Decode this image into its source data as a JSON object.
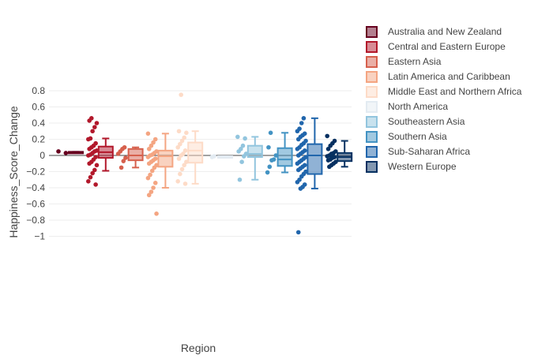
{
  "chart_data": {
    "type": "box",
    "title": "",
    "xlabel": "Region",
    "ylabel": "Happiness_Score_Change",
    "ylim": [
      -1.05,
      0.85
    ],
    "yticks": [
      0.8,
      0.6,
      0.4,
      0.2,
      0,
      -0.2,
      -0.4,
      -0.6,
      -0.8,
      -1
    ],
    "ytick_labels": [
      "0.8",
      "0.6",
      "0.4",
      "0.2",
      "0",
      "−0.2",
      "−0.4",
      "−0.6",
      "−0.8",
      "−1"
    ],
    "grid": true,
    "legend_position": "top-right",
    "series": [
      {
        "name": "Australia and New Zealand",
        "color": "#67001f",
        "box": {
          "lowerfence": 0.035,
          "q1": 0.035,
          "median": 0.04,
          "q3": 0.045,
          "upperfence": 0.045
        },
        "points": [
          0.05,
          0.03
        ]
      },
      {
        "name": "Central and Eastern Europe",
        "color": "#b2182b",
        "box": {
          "lowerfence": -0.19,
          "q1": -0.03,
          "median": 0.04,
          "q3": 0.11,
          "upperfence": 0.21
        },
        "points": [
          0.46,
          0.43,
          0.4,
          0.35,
          0.3,
          0.21,
          0.2,
          0.15,
          0.12,
          0.1,
          0.08,
          0.06,
          0.05,
          0.03,
          0.01,
          0.0,
          -0.02,
          -0.05,
          -0.08,
          -0.1,
          -0.12,
          -0.18,
          -0.22,
          -0.27,
          -0.32,
          -0.36
        ]
      },
      {
        "name": "Eastern Asia",
        "color": "#d6604d",
        "box": {
          "lowerfence": -0.15,
          "q1": -0.06,
          "median": 0.0,
          "q3": 0.08,
          "upperfence": 0.1
        },
        "points": [
          0.1,
          0.08,
          0.05,
          0.02,
          -0.03,
          -0.07,
          -0.15
        ]
      },
      {
        "name": "Latin America and Caribbean",
        "color": "#f4a582",
        "box": {
          "lowerfence": -0.4,
          "q1": -0.14,
          "median": -0.01,
          "q3": 0.06,
          "upperfence": 0.27
        },
        "points": [
          0.27,
          0.2,
          0.16,
          0.12,
          0.08,
          0.05,
          0.03,
          0.01,
          0.0,
          -0.02,
          -0.04,
          -0.06,
          -0.08,
          -0.1,
          -0.12,
          -0.15,
          -0.19,
          -0.24,
          -0.28,
          -0.34,
          -0.4,
          -0.45,
          -0.49,
          -0.72
        ]
      },
      {
        "name": "Middle East and Northern Africa",
        "color": "#fddbc7",
        "box": {
          "lowerfence": -0.35,
          "q1": -0.09,
          "median": 0.06,
          "q3": 0.16,
          "upperfence": 0.3
        },
        "points": [
          0.75,
          0.3,
          0.28,
          0.22,
          0.18,
          0.14,
          0.1,
          0.06,
          0.02,
          0.0,
          -0.04,
          -0.08,
          -0.12,
          -0.17,
          -0.23,
          -0.32,
          -0.35
        ]
      },
      {
        "name": "North America",
        "color": "#e3ebf2",
        "box": {
          "lowerfence": -0.02,
          "q1": -0.02,
          "median": -0.015,
          "q3": -0.01,
          "upperfence": -0.01
        },
        "points": [
          -0.01,
          -0.02
        ]
      },
      {
        "name": "Southeastern Asia",
        "color": "#92c5de",
        "box": {
          "lowerfence": -0.3,
          "q1": -0.02,
          "median": 0.02,
          "q3": 0.12,
          "upperfence": 0.23
        },
        "points": [
          0.23,
          0.21,
          0.12,
          0.08,
          0.05,
          0.02,
          -0.01,
          -0.08,
          -0.3
        ]
      },
      {
        "name": "Southern Asia",
        "color": "#4393c3",
        "box": {
          "lowerfence": -0.21,
          "q1": -0.13,
          "median": -0.05,
          "q3": 0.09,
          "upperfence": 0.28
        },
        "points": [
          0.28,
          0.1,
          0.0,
          -0.05,
          -0.06,
          -0.14,
          -0.21
        ]
      },
      {
        "name": "Sub-Saharan Africa",
        "color": "#2166ac",
        "box": {
          "lowerfence": -0.41,
          "q1": -0.23,
          "median": 0.0,
          "q3": 0.14,
          "upperfence": 0.46
        },
        "points": [
          0.46,
          0.4,
          0.33,
          0.3,
          0.27,
          0.25,
          0.23,
          0.2,
          0.18,
          0.15,
          0.13,
          0.1,
          0.08,
          0.06,
          0.04,
          0.02,
          0.0,
          -0.02,
          -0.04,
          -0.06,
          -0.08,
          -0.1,
          -0.12,
          -0.14,
          -0.16,
          -0.18,
          -0.2,
          -0.23,
          -0.26,
          -0.3,
          -0.33,
          -0.36,
          -0.39,
          -0.41,
          -0.95
        ]
      },
      {
        "name": "Western Europe",
        "color": "#053061",
        "box": {
          "lowerfence": -0.14,
          "q1": -0.07,
          "median": -0.02,
          "q3": 0.03,
          "upperfence": 0.18
        },
        "points": [
          0.24,
          0.18,
          0.15,
          0.12,
          0.08,
          0.05,
          0.03,
          0.02,
          0.0,
          -0.01,
          -0.02,
          -0.03,
          -0.05,
          -0.06,
          -0.08,
          -0.1,
          -0.12,
          -0.14
        ]
      }
    ]
  }
}
